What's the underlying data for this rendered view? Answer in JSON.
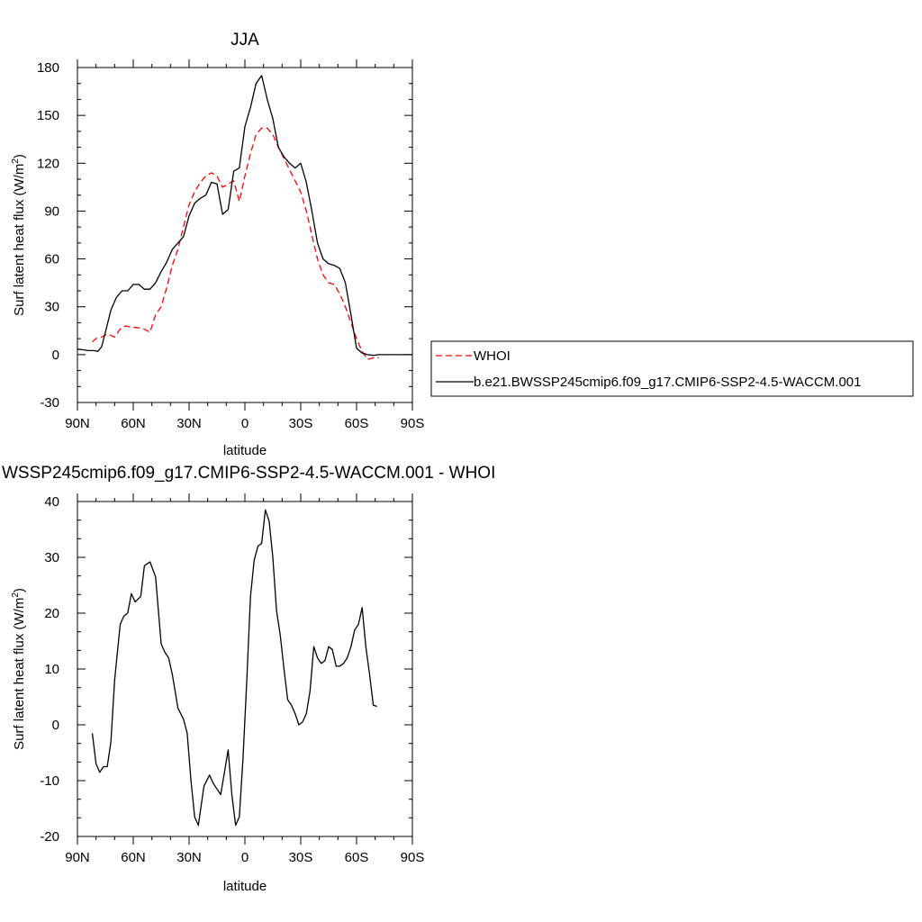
{
  "chart_data": [
    {
      "type": "line",
      "title": "JJA",
      "xlabel": "latitude",
      "ylabel": "Surf latent heat flux (W/m",
      "ylabel_sup": "2",
      "ylabel_close": ")",
      "x_unit": "degrees latitude (positive = N, negative = S)",
      "xlim": [
        90,
        -90
      ],
      "ylim": [
        -30,
        180
      ],
      "xticks": [
        90,
        60,
        30,
        0,
        -30,
        -60,
        -90
      ],
      "xtick_labels": [
        "90N",
        "60N",
        "30N",
        "0",
        "30S",
        "60S",
        "90S"
      ],
      "yticks": [
        -30,
        0,
        30,
        60,
        90,
        120,
        150,
        180
      ],
      "ytick_labels": [
        "-30",
        "0",
        "30",
        "60",
        "90",
        "120",
        "150",
        "180"
      ],
      "grid": false,
      "legend_placement": "right",
      "series": [
        {
          "name": "WHOI",
          "color": "#ff0000",
          "dash": "dashed",
          "x": [
            82,
            80,
            77,
            74,
            70,
            67,
            64,
            61,
            58,
            54,
            51,
            48,
            45,
            42,
            39,
            36,
            33,
            30,
            27,
            24,
            21,
            18,
            15,
            12,
            9,
            6,
            3,
            0,
            -3,
            -6,
            -9,
            -12,
            -15,
            -18,
            -21,
            -24,
            -27,
            -30,
            -33,
            -36,
            -39,
            -42,
            -45,
            -48,
            -51,
            -54,
            -57,
            -60,
            -63,
            -66,
            -69,
            -72
          ],
          "y": [
            8,
            10,
            11,
            13,
            11,
            16,
            18,
            17,
            17,
            16,
            14,
            25,
            30,
            42,
            56,
            66,
            80,
            94,
            102,
            108,
            112,
            114,
            112,
            105,
            107,
            109,
            96,
            112,
            126,
            138,
            142,
            142,
            138,
            130,
            123,
            116,
            109,
            102,
            90,
            75,
            60,
            50,
            45,
            44,
            38,
            30,
            20,
            10,
            2,
            -3,
            -2,
            -2
          ]
        },
        {
          "name": "b.e21.BWSSP245cmip6.f09_g17.CMIP6-SSP2-4.5-WACCM.001",
          "color": "#000000",
          "dash": "solid",
          "x": [
            90,
            87,
            84,
            81,
            79,
            77,
            75,
            72,
            69,
            66,
            63,
            60,
            57,
            54,
            51,
            48,
            45,
            42,
            39,
            36,
            33,
            30,
            27,
            24,
            21,
            18,
            15,
            12,
            9,
            6,
            3,
            0,
            -3,
            -6,
            -9,
            -12,
            -15,
            -18,
            -21,
            -24,
            -27,
            -30,
            -33,
            -36,
            -39,
            -42,
            -45,
            -48,
            -51,
            -54,
            -57,
            -60,
            -63,
            -66,
            -69,
            -72,
            -75,
            -78,
            -81,
            -84,
            -87,
            -90
          ],
          "y": [
            3.5,
            3,
            2.5,
            2.5,
            2,
            5,
            14,
            28,
            36,
            40,
            40,
            44,
            44,
            41,
            41,
            45,
            52,
            58,
            66,
            70,
            74,
            87,
            95,
            98,
            100,
            108,
            107,
            88,
            91,
            115,
            117,
            143,
            155,
            170,
            175,
            160,
            148,
            130,
            124,
            120,
            117,
            120,
            108,
            90,
            70,
            60,
            57,
            56,
            54,
            45,
            25,
            4,
            1,
            0,
            -0.5,
            0,
            0,
            0,
            0,
            0,
            0,
            0
          ]
        }
      ]
    },
    {
      "type": "line",
      "title": "WSSP245cmip6.f09_g17.CMIP6-SSP2-4.5-WACCM.001 - WHOI",
      "xlabel": "latitude",
      "ylabel": "Surf latent heat flux (W/m",
      "ylabel_sup": "2",
      "ylabel_close": ")",
      "x_unit": "degrees latitude (positive = N, negative = S)",
      "xlim": [
        90,
        -90
      ],
      "ylim": [
        -20,
        40
      ],
      "xticks": [
        90,
        60,
        30,
        0,
        -30,
        -60,
        -90
      ],
      "xtick_labels": [
        "90N",
        "60N",
        "30N",
        "0",
        "30S",
        "60S",
        "90S"
      ],
      "yticks": [
        -20,
        -10,
        0,
        10,
        20,
        30,
        40
      ],
      "ytick_labels": [
        "-20",
        "-10",
        "0",
        "10",
        "20",
        "30",
        "40"
      ],
      "grid": false,
      "series": [
        {
          "color": "#000000",
          "dash": "solid",
          "x": [
            82,
            80,
            78,
            76,
            74,
            72,
            70,
            67,
            65,
            63,
            61,
            59,
            56,
            54,
            51,
            48,
            45,
            43,
            41,
            39,
            36,
            33,
            31,
            29,
            27,
            25,
            22,
            19,
            17,
            15,
            13,
            11,
            9,
            7,
            5,
            3,
            1,
            -1,
            -3,
            -5,
            -7,
            -9,
            -11,
            -13,
            -15,
            -17,
            -19,
            -21,
            -23,
            -25,
            -27,
            -29,
            -31,
            -33,
            -35,
            -37,
            -39,
            -41,
            -43,
            -45,
            -47,
            -49,
            -51,
            -53,
            -55,
            -57,
            -59,
            -61,
            -63,
            -65,
            -67,
            -69,
            -71
          ],
          "y": [
            -1.5,
            -7,
            -8.5,
            -7.5,
            -7.5,
            -3,
            8,
            18,
            19.5,
            20,
            23.5,
            22,
            23,
            28.5,
            29.2,
            26.5,
            14.5,
            13,
            12,
            9,
            3,
            1,
            -1.5,
            -10,
            -16.5,
            -18,
            -11,
            -9,
            -10.5,
            -11.5,
            -12.5,
            -8.5,
            -4.5,
            -12.5,
            -18,
            -16.5,
            -6,
            8,
            23,
            29.5,
            32,
            32.5,
            38.5,
            36.5,
            30,
            20.5,
            16,
            10,
            4.5,
            3.5,
            2,
            0,
            0.5,
            2,
            6,
            14,
            12,
            11,
            11.5,
            14,
            13.5,
            10.5,
            10.5,
            11,
            12,
            14,
            17,
            18,
            21,
            14,
            9,
            3.5,
            3.3
          ]
        }
      ]
    }
  ]
}
